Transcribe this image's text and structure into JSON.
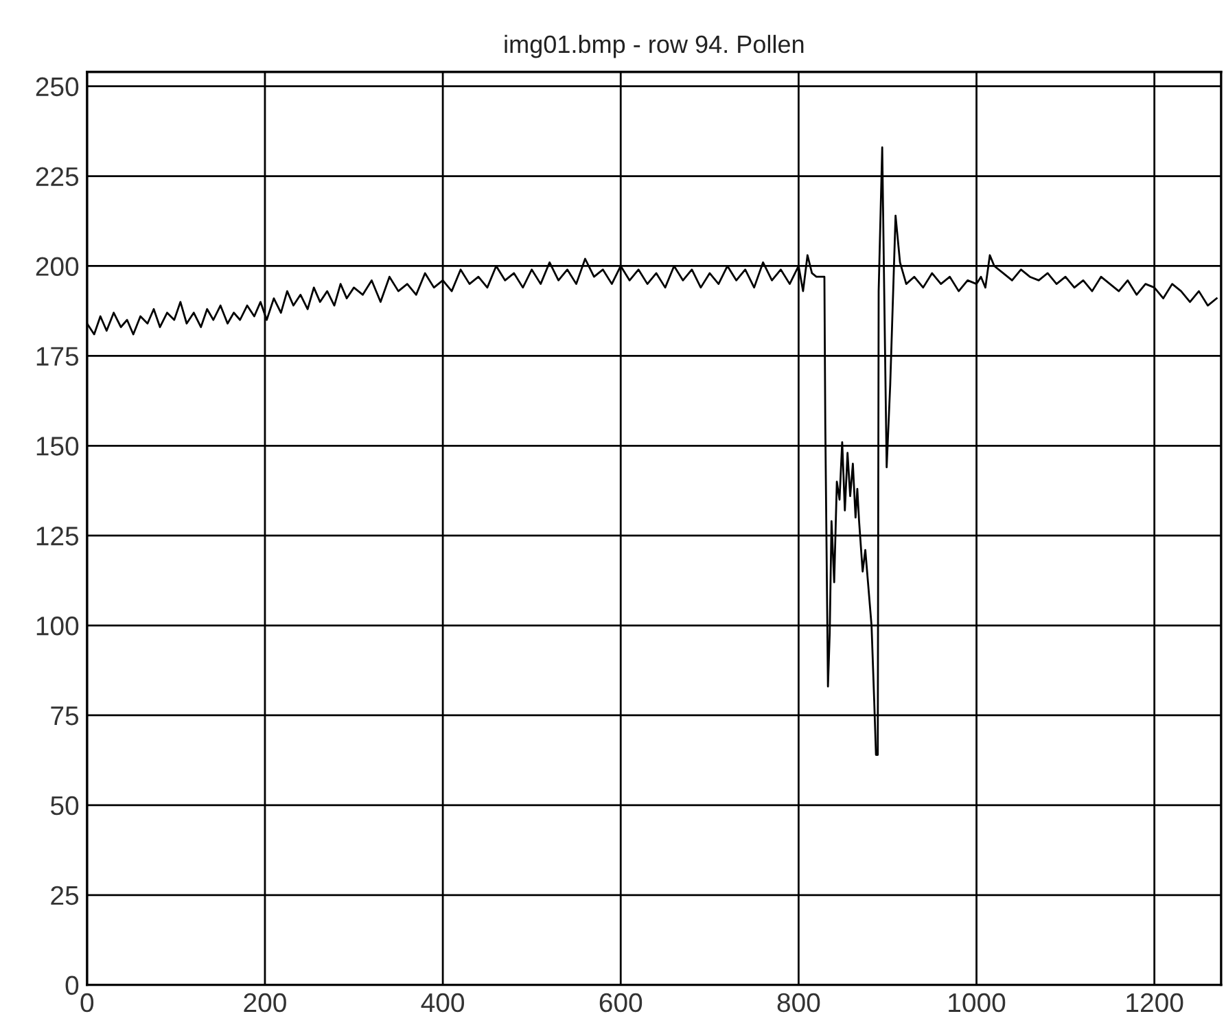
{
  "chart_data": {
    "type": "line",
    "title": "img01.bmp - row 94. Pollen",
    "x": [
      0,
      8,
      15,
      22,
      30,
      38,
      45,
      52,
      60,
      68,
      75,
      82,
      90,
      98,
      105,
      112,
      120,
      128,
      135,
      142,
      150,
      158,
      165,
      172,
      180,
      188,
      195,
      202,
      210,
      218,
      225,
      232,
      240,
      248,
      255,
      262,
      270,
      278,
      285,
      292,
      300,
      310,
      320,
      330,
      340,
      350,
      360,
      370,
      380,
      390,
      400,
      410,
      420,
      430,
      440,
      450,
      460,
      470,
      480,
      490,
      500,
      510,
      520,
      530,
      540,
      550,
      560,
      570,
      580,
      590,
      600,
      610,
      620,
      630,
      640,
      650,
      660,
      670,
      680,
      690,
      700,
      710,
      720,
      730,
      740,
      750,
      760,
      770,
      780,
      790,
      800,
      805,
      810,
      815,
      820,
      824,
      829,
      830,
      833,
      835,
      837,
      840,
      843,
      846,
      849,
      852,
      855,
      858,
      861,
      864,
      866,
      868,
      872,
      875,
      878,
      882,
      885,
      887,
      889,
      890,
      894,
      899,
      903,
      909,
      914,
      921,
      930,
      940,
      950,
      960,
      970,
      980,
      990,
      1000,
      1005,
      1010,
      1015,
      1020,
      1030,
      1040,
      1050,
      1060,
      1070,
      1080,
      1090,
      1100,
      1110,
      1120,
      1130,
      1140,
      1150,
      1160,
      1170,
      1180,
      1190,
      1200,
      1210,
      1220,
      1230,
      1240,
      1250,
      1260,
      1270
    ],
    "values": [
      184,
      181,
      186,
      182,
      187,
      183,
      185,
      181,
      186,
      184,
      188,
      183,
      187,
      185,
      190,
      184,
      187,
      183,
      188,
      185,
      189,
      184,
      187,
      185,
      189,
      186,
      190,
      185,
      191,
      187,
      193,
      189,
      192,
      188,
      194,
      190,
      193,
      189,
      195,
      191,
      194,
      192,
      196,
      190,
      197,
      193,
      195,
      192,
      198,
      194,
      196,
      193,
      199,
      195,
      197,
      194,
      200,
      196,
      198,
      194,
      199,
      195,
      201,
      196,
      199,
      195,
      202,
      197,
      199,
      195,
      200,
      196,
      199,
      195,
      198,
      194,
      200,
      196,
      199,
      194,
      198,
      195,
      200,
      196,
      199,
      194,
      201,
      196,
      199,
      195,
      200,
      193,
      203,
      198,
      197,
      197,
      197,
      156,
      83,
      98,
      129,
      112,
      140,
      135,
      151,
      132,
      148,
      136,
      145,
      130,
      138,
      129,
      115,
      121,
      112,
      100,
      79,
      64,
      64,
      193,
      233,
      144,
      167,
      214,
      201,
      195,
      197,
      194,
      198,
      195,
      197,
      193,
      196,
      195,
      197,
      194,
      203,
      200,
      198,
      196,
      199,
      197,
      196,
      198,
      195,
      197,
      194,
      196,
      193,
      197,
      195,
      193,
      196,
      192,
      195,
      194,
      191,
      195,
      193,
      190,
      193,
      189,
      191
    ],
    "color": "#000000",
    "xlim": [
      0,
      1275
    ],
    "ylim": [
      0,
      254
    ],
    "xticks": [
      0,
      200,
      400,
      600,
      800,
      1000,
      1200
    ],
    "yticks": [
      0,
      25,
      50,
      75,
      100,
      125,
      150,
      175,
      200,
      225,
      250
    ],
    "grid": true,
    "marker": "none",
    "line_style": "solid"
  }
}
